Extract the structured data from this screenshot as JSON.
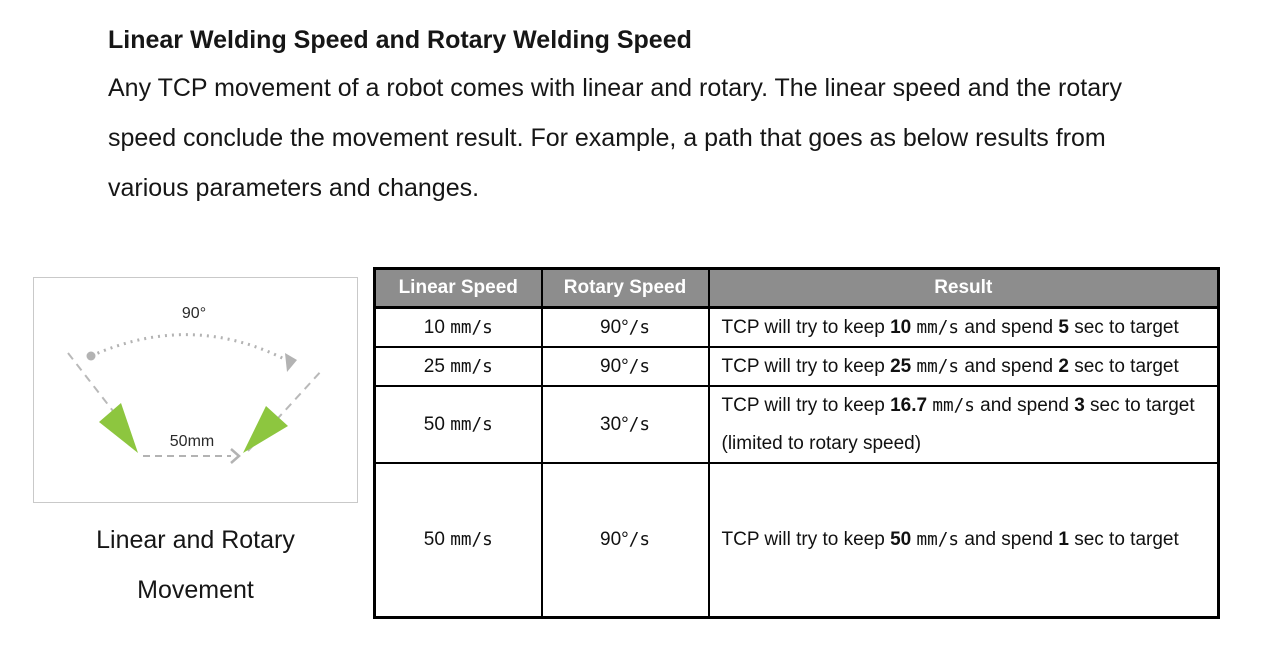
{
  "page": {
    "heading": "Linear Welding Speed and Rotary Welding Speed",
    "paragraph_lines": [
      "Any TCP movement of a robot comes with linear and rotary. The linear speed and the rotary",
      "speed conclude the movement result. For example, a path that goes as below results from",
      "various parameters and changes."
    ]
  },
  "figure": {
    "angle_label": "90°",
    "distance_label": "50mm",
    "caption_line1": "Linear and Rotary",
    "caption_line2": "Movement",
    "colors": {
      "cone_green": "#8dc63f",
      "dash_gray": "#b9b9b9",
      "dot_gray": "#b3b3b3",
      "box_border": "#c9c9c9"
    }
  },
  "table": {
    "header_bg": "#8d8d8d",
    "header": {
      "linear": "Linear Speed",
      "rotary": "Rotary Speed",
      "result": "Result"
    },
    "rows": [
      {
        "linear": [
          {
            "t": "10 "
          },
          {
            "t": "mm/s",
            "f": "m"
          }
        ],
        "rotary": [
          {
            "t": "90°"
          },
          {
            "t": "/s",
            "f": "m"
          }
        ],
        "result": [
          [
            {
              "t": "TCP will try to keep "
            },
            {
              "t": "10",
              "f": "b"
            },
            {
              "t": " "
            },
            {
              "t": "mm/s",
              "f": "m"
            },
            {
              "t": " and spend "
            },
            {
              "t": "5",
              "f": "b"
            },
            {
              "t": " sec to target"
            }
          ]
        ]
      },
      {
        "linear": [
          {
            "t": "25 "
          },
          {
            "t": "mm/s",
            "f": "m"
          }
        ],
        "rotary": [
          {
            "t": "90°"
          },
          {
            "t": "/s",
            "f": "m"
          }
        ],
        "result": [
          [
            {
              "t": "TCP will try to keep "
            },
            {
              "t": "25",
              "f": "b"
            },
            {
              "t": " "
            },
            {
              "t": "mm/s",
              "f": "m"
            },
            {
              "t": " and spend "
            },
            {
              "t": "2",
              "f": "b"
            },
            {
              "t": " sec to target"
            }
          ]
        ]
      },
      {
        "linear": [
          {
            "t": "50 "
          },
          {
            "t": "mm/s",
            "f": "m"
          }
        ],
        "rotary": [
          {
            "t": "30°"
          },
          {
            "t": "/s",
            "f": "m"
          }
        ],
        "result": [
          [
            {
              "t": "TCP will try to keep "
            },
            {
              "t": "16.7",
              "f": "b"
            },
            {
              "t": " "
            },
            {
              "t": "mm/s",
              "f": "m"
            },
            {
              "t": " and spend "
            },
            {
              "t": "3",
              "f": "b"
            },
            {
              "t": " sec to target"
            }
          ],
          [
            {
              "t": "(limited to rotary speed)"
            }
          ]
        ]
      },
      {
        "linear": [
          {
            "t": "50 "
          },
          {
            "t": "mm/s",
            "f": "m"
          }
        ],
        "rotary": [
          {
            "t": "90°"
          },
          {
            "t": "/s",
            "f": "m"
          }
        ],
        "result": [
          [
            {
              "t": "TCP will try to keep "
            },
            {
              "t": "50",
              "f": "b"
            },
            {
              "t": " "
            },
            {
              "t": "mm/s",
              "f": "m"
            },
            {
              "t": " and spend "
            },
            {
              "t": "1",
              "f": "b"
            },
            {
              "t": " sec to target"
            }
          ]
        ]
      }
    ]
  }
}
